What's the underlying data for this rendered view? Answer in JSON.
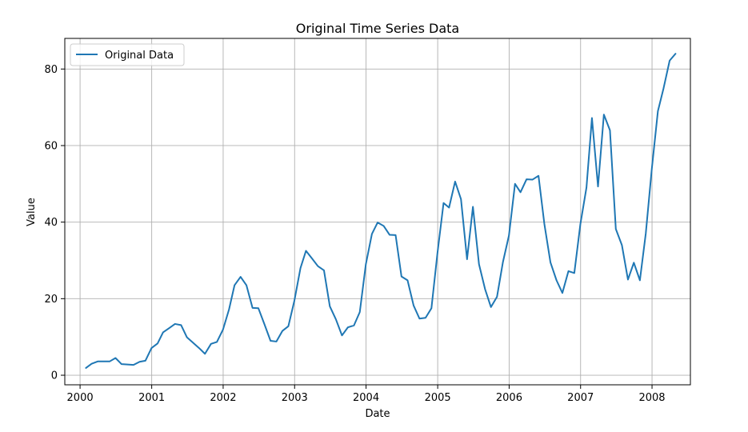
{
  "chart_data": {
    "type": "line",
    "title": "Original Time Series Data",
    "xlabel": "Date",
    "ylabel": "Value",
    "xlim": [
      "1999-10-15",
      "2008-07-15"
    ],
    "ylim": [
      -2.5,
      88
    ],
    "x_ticks": [
      "2000",
      "2001",
      "2002",
      "2003",
      "2004",
      "2005",
      "2006",
      "2007",
      "2008"
    ],
    "y_ticks": [
      0,
      20,
      40,
      60,
      80
    ],
    "grid": true,
    "legend": "top-left",
    "series": [
      {
        "name": "Original Data",
        "color": "#1f77b4",
        "x": [
          "2000-01-31",
          "2000-02-29",
          "2000-03-31",
          "2000-04-30",
          "2000-05-31",
          "2000-06-30",
          "2000-07-31",
          "2000-08-31",
          "2000-09-30",
          "2000-10-31",
          "2000-11-30",
          "2000-12-31",
          "2001-01-31",
          "2001-02-28",
          "2001-03-31",
          "2001-04-30",
          "2001-05-31",
          "2001-06-30",
          "2001-07-31",
          "2001-08-31",
          "2001-09-30",
          "2001-10-31",
          "2001-11-30",
          "2001-12-31",
          "2002-01-31",
          "2002-02-28",
          "2002-03-31",
          "2002-04-30",
          "2002-05-31",
          "2002-06-30",
          "2002-07-31",
          "2002-08-31",
          "2002-09-30",
          "2002-10-31",
          "2002-11-30",
          "2002-12-31",
          "2003-01-31",
          "2003-02-28",
          "2003-03-31",
          "2003-04-30",
          "2003-05-31",
          "2003-06-30",
          "2003-07-31",
          "2003-08-31",
          "2003-09-30",
          "2003-10-31",
          "2003-11-30",
          "2003-12-31",
          "2004-01-31",
          "2004-02-29",
          "2004-03-31",
          "2004-04-30",
          "2004-05-31",
          "2004-06-30",
          "2004-07-31",
          "2004-08-31",
          "2004-09-30",
          "2004-10-31",
          "2004-11-30",
          "2004-12-31",
          "2005-01-31",
          "2005-02-28",
          "2005-03-31",
          "2005-04-30",
          "2005-05-31",
          "2005-06-30",
          "2005-07-31",
          "2005-08-31",
          "2005-09-30",
          "2005-10-31",
          "2005-11-30",
          "2005-12-31",
          "2006-01-31",
          "2006-02-28",
          "2006-03-31",
          "2006-04-30",
          "2006-05-31",
          "2006-06-30",
          "2006-07-31",
          "2006-08-31",
          "2006-09-30",
          "2006-10-31",
          "2006-11-30",
          "2006-12-31",
          "2007-01-31",
          "2007-02-28",
          "2007-03-31",
          "2007-04-30",
          "2007-05-31",
          "2007-06-30",
          "2007-07-31",
          "2007-08-31",
          "2007-09-30",
          "2007-10-31",
          "2007-11-30",
          "2007-12-31",
          "2008-01-31",
          "2008-02-29",
          "2008-03-31",
          "2008-04-30"
        ],
        "values": [
          1.9,
          3.0,
          3.6,
          3.6,
          3.6,
          4.5,
          2.9,
          2.8,
          2.7,
          3.5,
          3.8,
          7.1,
          8.3,
          11.2,
          12.3,
          13.4,
          13.1,
          9.9,
          8.5,
          7.1,
          5.6,
          8.2,
          8.7,
          11.9,
          17.2,
          23.5,
          25.7,
          23.5,
          17.6,
          17.5,
          13.3,
          9.0,
          8.8,
          11.6,
          12.8,
          19.5,
          28.0,
          32.5,
          30.5,
          28.5,
          27.4,
          18.0,
          14.6,
          10.4,
          12.5,
          13.0,
          16.5,
          29.0,
          36.9,
          39.9,
          39.0,
          36.7,
          36.6,
          25.8,
          24.8,
          18.2,
          14.8,
          15.0,
          17.5,
          32.0,
          45.0,
          43.8,
          50.6,
          46.0,
          30.3,
          44.0,
          29.0,
          22.5,
          17.8,
          20.5,
          29.5,
          36.5,
          50.0,
          47.8,
          51.2,
          51.1,
          52.1,
          39.5,
          29.5,
          24.8,
          21.5,
          27.2,
          26.7,
          39.5,
          49.0,
          67.2,
          49.3,
          68.1,
          64.0,
          38.2,
          34.0,
          25.0,
          29.4,
          24.8,
          37.0,
          54.0,
          69.0,
          75.0,
          82.2,
          84.0
        ]
      }
    ]
  }
}
